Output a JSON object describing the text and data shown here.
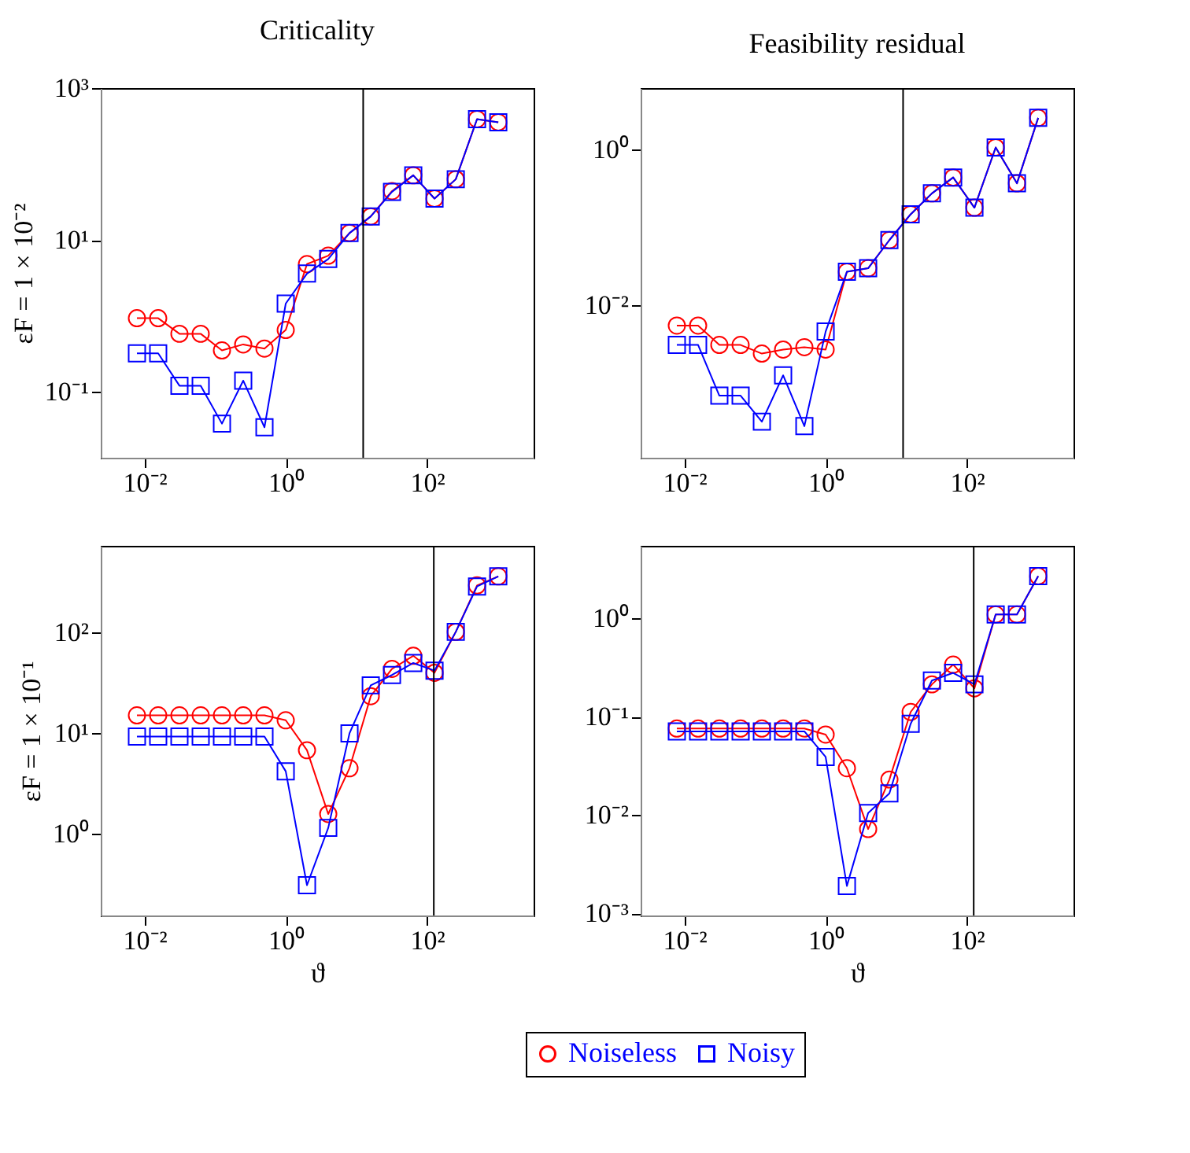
{
  "chart_data": [
    {
      "type": "line",
      "title": "Criticality",
      "ylabel": "εF = 1 × 10⁻²",
      "log": "xy",
      "grid": false,
      "legend": "bottom",
      "line_style": "solid",
      "x": [
        0.0078125,
        0.015625,
        0.03125,
        0.0625,
        0.125,
        0.25,
        0.5,
        1,
        2,
        4,
        8,
        16,
        32,
        64,
        128,
        256,
        512,
        1024
      ],
      "xlim": [
        0.0024,
        3240
      ],
      "xticks": [
        {
          "value": 0.01,
          "label": "10⁻²"
        },
        {
          "value": 1,
          "label": "10⁰"
        },
        {
          "value": 100,
          "label": "10²"
        }
      ],
      "ylim": [
        0.0135,
        1000
      ],
      "yticks": [
        {
          "value": 0.1,
          "label": "10⁻¹"
        },
        {
          "value": 10,
          "label": "10¹"
        },
        {
          "value": 1000,
          "label": "10³"
        }
      ],
      "series": [
        {
          "name": "Noiseless",
          "color": "#ff0000",
          "marker": "circle",
          "values": [
            0.93,
            0.93,
            0.58,
            0.58,
            0.35,
            0.42,
            0.37,
            0.65,
            4.8,
            6.2,
            12.3,
            20.4,
            44,
            71,
            35,
            63,
            390,
            355
          ]
        },
        {
          "name": "Noisy",
          "color": "#0000ff",
          "marker": "square",
          "values": [
            0.32,
            0.32,
            0.12,
            0.12,
            0.038,
            0.14,
            0.034,
            1.45,
            3.6,
            5.6,
            12.3,
            20.4,
            43,
            71,
            35,
            63,
            390,
            355
          ]
        }
      ],
      "ref_lines": [
        {
          "axis": "x",
          "value": 12.5,
          "color": "#000000"
        }
      ]
    },
    {
      "type": "line",
      "title": "Feasibility residual",
      "log": "xy",
      "grid": false,
      "legend": "bottom",
      "line_style": "solid",
      "x": [
        0.0078125,
        0.015625,
        0.03125,
        0.0625,
        0.125,
        0.25,
        0.5,
        1,
        2,
        4,
        8,
        16,
        32,
        64,
        128,
        256,
        512,
        1024
      ],
      "xlim": [
        0.0024,
        3240
      ],
      "xticks": [
        {
          "value": 0.01,
          "label": "10⁻²"
        },
        {
          "value": 1,
          "label": "10⁰"
        },
        {
          "value": 100,
          "label": "10²"
        }
      ],
      "ylim": [
        0.00011,
        6.2
      ],
      "yticks": [
        {
          "value": 0.01,
          "label": "10⁻²"
        },
        {
          "value": 1,
          "label": "10⁰"
        }
      ],
      "series": [
        {
          "name": "Noiseless",
          "color": "#ff0000",
          "marker": "circle",
          "values": [
            0.0055,
            0.0055,
            0.0031,
            0.0031,
            0.0024,
            0.0027,
            0.0029,
            0.0027,
            0.027,
            0.03,
            0.069,
            0.148,
            0.275,
            0.44,
            0.18,
            1.07,
            0.37,
            2.57
          ]
        },
        {
          "name": "Noisy",
          "color": "#0000ff",
          "marker": "square",
          "values": [
            0.0031,
            0.0031,
            0.00069,
            0.00069,
            0.00032,
            0.00126,
            0.00028,
            0.0046,
            0.027,
            0.03,
            0.069,
            0.148,
            0.275,
            0.44,
            0.18,
            1.07,
            0.37,
            2.57
          ]
        }
      ],
      "ref_lines": [
        {
          "axis": "x",
          "value": 12.5,
          "color": "#000000"
        }
      ]
    },
    {
      "type": "line",
      "xlabel": "ϑ",
      "ylabel": "εF = 1 × 10⁻¹",
      "log": "xy",
      "grid": false,
      "legend": "bottom",
      "line_style": "solid",
      "x": [
        0.0078125,
        0.015625,
        0.03125,
        0.0625,
        0.125,
        0.25,
        0.5,
        1,
        2,
        4,
        8,
        16,
        32,
        64,
        128,
        256,
        512,
        1024
      ],
      "xlim": [
        0.0024,
        3240
      ],
      "xticks": [
        {
          "value": 0.01,
          "label": "10⁻²"
        },
        {
          "value": 1,
          "label": "10⁰"
        },
        {
          "value": 100,
          "label": "10²"
        }
      ],
      "ylim": [
        0.155,
        730
      ],
      "yticks": [
        {
          "value": 1,
          "label": "10⁰"
        },
        {
          "value": 10,
          "label": "10¹"
        },
        {
          "value": 100,
          "label": "10²"
        }
      ],
      "series": [
        {
          "name": "Noiseless",
          "color": "#ff0000",
          "marker": "circle",
          "values": [
            15.1,
            15.1,
            15.1,
            15.1,
            15.1,
            15.1,
            15.1,
            13.5,
            6.8,
            1.58,
            4.5,
            23.4,
            43.7,
            59,
            40,
            102,
            295,
            363
          ]
        },
        {
          "name": "Noisy",
          "color": "#0000ff",
          "marker": "square",
          "values": [
            9.3,
            9.3,
            9.3,
            9.3,
            9.3,
            9.3,
            9.3,
            4.2,
            0.31,
            1.15,
            10,
            30,
            38,
            50,
            42,
            102,
            288,
            363
          ]
        }
      ],
      "ref_lines": [
        {
          "axis": "x",
          "value": 125,
          "color": "#000000"
        }
      ]
    },
    {
      "type": "line",
      "xlabel": "ϑ",
      "log": "xy",
      "grid": false,
      "legend": "bottom",
      "line_style": "solid",
      "x": [
        0.0078125,
        0.015625,
        0.03125,
        0.0625,
        0.125,
        0.25,
        0.5,
        1,
        2,
        4,
        8,
        16,
        32,
        64,
        128,
        256,
        512,
        1024
      ],
      "xlim": [
        0.0024,
        3240
      ],
      "xticks": [
        {
          "value": 0.01,
          "label": "10⁻²"
        },
        {
          "value": 1,
          "label": "10⁰"
        },
        {
          "value": 100,
          "label": "10²"
        }
      ],
      "ylim": [
        0.00095,
        5.5
      ],
      "yticks": [
        {
          "value": 0.001,
          "label": "10⁻³"
        },
        {
          "value": 0.01,
          "label": "10⁻²"
        },
        {
          "value": 0.1,
          "label": "10⁻¹"
        },
        {
          "value": 1,
          "label": "10⁰"
        }
      ],
      "series": [
        {
          "name": "Noiseless",
          "color": "#ff0000",
          "marker": "circle",
          "values": [
            0.076,
            0.076,
            0.076,
            0.076,
            0.076,
            0.076,
            0.076,
            0.066,
            0.03,
            0.0072,
            0.023,
            0.112,
            0.214,
            0.34,
            0.195,
            1.1,
            1.1,
            2.7
          ]
        },
        {
          "name": "Noisy",
          "color": "#0000ff",
          "marker": "square",
          "values": [
            0.071,
            0.071,
            0.071,
            0.071,
            0.071,
            0.071,
            0.071,
            0.039,
            0.0019,
            0.0105,
            0.0166,
            0.085,
            0.234,
            0.28,
            0.214,
            1.1,
            1.1,
            2.7
          ]
        }
      ],
      "ref_lines": [
        {
          "axis": "x",
          "value": 125,
          "color": "#000000"
        }
      ]
    }
  ]
}
